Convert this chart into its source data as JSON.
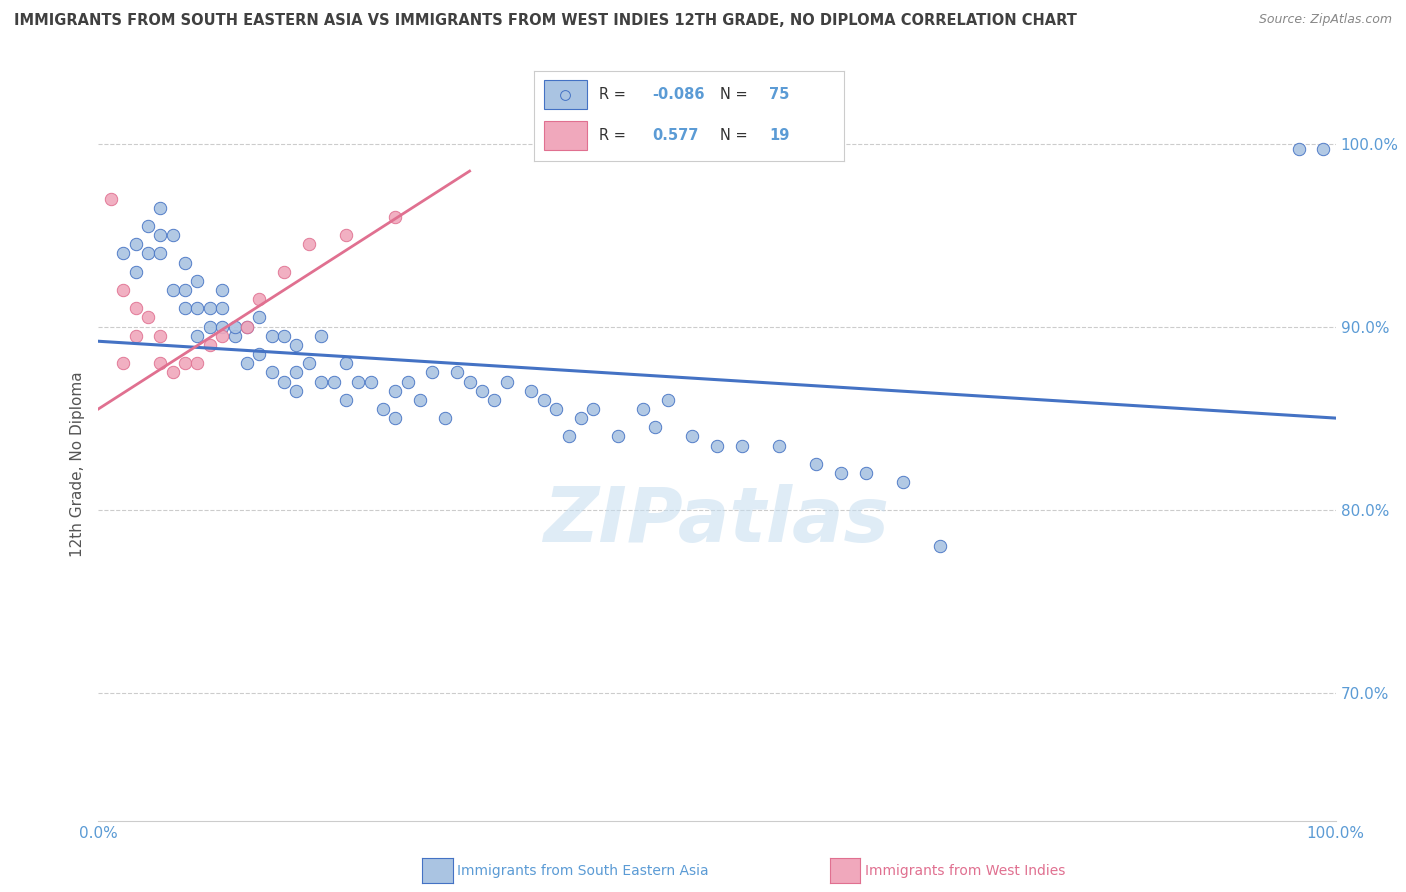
{
  "title": "IMMIGRANTS FROM SOUTH EASTERN ASIA VS IMMIGRANTS FROM WEST INDIES 12TH GRADE, NO DIPLOMA CORRELATION CHART",
  "source": "Source: ZipAtlas.com",
  "ylabel": "12th Grade, No Diploma",
  "watermark": "ZIPatlas",
  "blue_label": "Immigrants from South Eastern Asia",
  "pink_label": "Immigrants from West Indies",
  "blue_R": -0.086,
  "blue_N": 75,
  "pink_R": 0.577,
  "pink_N": 19,
  "xlim": [
    0.0,
    1.0
  ],
  "ylim": [
    0.63,
    1.02
  ],
  "yticks": [
    0.7,
    0.8,
    0.9,
    1.0
  ],
  "ytick_labels": [
    "70.0%",
    "80.0%",
    "90.0%",
    "100.0%"
  ],
  "xticks": [
    0.0,
    1.0
  ],
  "xtick_labels": [
    "0.0%",
    "100.0%"
  ],
  "blue_color": "#aac4e2",
  "pink_color": "#f0a8bc",
  "blue_edge_color": "#4472c4",
  "pink_edge_color": "#e07090",
  "blue_line_color": "#4472c4",
  "pink_line_color": "#e07090",
  "axis_color": "#5b9bd5",
  "title_color": "#404040",
  "background_color": "#ffffff",
  "blue_x": [
    0.02,
    0.03,
    0.03,
    0.04,
    0.04,
    0.05,
    0.05,
    0.05,
    0.06,
    0.06,
    0.07,
    0.07,
    0.07,
    0.08,
    0.08,
    0.08,
    0.09,
    0.09,
    0.1,
    0.1,
    0.1,
    0.11,
    0.11,
    0.12,
    0.12,
    0.13,
    0.13,
    0.14,
    0.14,
    0.15,
    0.15,
    0.16,
    0.16,
    0.16,
    0.17,
    0.18,
    0.18,
    0.19,
    0.2,
    0.2,
    0.21,
    0.22,
    0.23,
    0.24,
    0.24,
    0.25,
    0.26,
    0.27,
    0.28,
    0.29,
    0.3,
    0.31,
    0.32,
    0.33,
    0.35,
    0.36,
    0.37,
    0.38,
    0.39,
    0.4,
    0.42,
    0.44,
    0.45,
    0.46,
    0.48,
    0.5,
    0.52,
    0.55,
    0.58,
    0.6,
    0.62,
    0.65,
    0.68,
    0.97,
    0.99
  ],
  "blue_y": [
    0.94,
    0.945,
    0.93,
    0.94,
    0.955,
    0.94,
    0.95,
    0.965,
    0.95,
    0.92,
    0.92,
    0.91,
    0.935,
    0.925,
    0.91,
    0.895,
    0.91,
    0.9,
    0.9,
    0.91,
    0.92,
    0.895,
    0.9,
    0.9,
    0.88,
    0.885,
    0.905,
    0.875,
    0.895,
    0.895,
    0.87,
    0.89,
    0.875,
    0.865,
    0.88,
    0.87,
    0.895,
    0.87,
    0.86,
    0.88,
    0.87,
    0.87,
    0.855,
    0.85,
    0.865,
    0.87,
    0.86,
    0.875,
    0.85,
    0.875,
    0.87,
    0.865,
    0.86,
    0.87,
    0.865,
    0.86,
    0.855,
    0.84,
    0.85,
    0.855,
    0.84,
    0.855,
    0.845,
    0.86,
    0.84,
    0.835,
    0.835,
    0.835,
    0.825,
    0.82,
    0.82,
    0.815,
    0.78,
    0.997,
    0.997
  ],
  "pink_x": [
    0.01,
    0.02,
    0.02,
    0.03,
    0.03,
    0.04,
    0.05,
    0.05,
    0.06,
    0.07,
    0.08,
    0.09,
    0.1,
    0.12,
    0.13,
    0.15,
    0.17,
    0.2,
    0.24
  ],
  "pink_y": [
    0.97,
    0.92,
    0.88,
    0.895,
    0.91,
    0.905,
    0.895,
    0.88,
    0.875,
    0.88,
    0.88,
    0.89,
    0.895,
    0.9,
    0.915,
    0.93,
    0.945,
    0.95,
    0.96
  ],
  "blue_dot_size": 80,
  "pink_dot_size": 80,
  "blue_trend_x": [
    0.0,
    1.0
  ],
  "blue_trend_y": [
    0.892,
    0.85
  ],
  "pink_trend_x": [
    0.0,
    0.3
  ],
  "pink_trend_y": [
    0.855,
    0.985
  ]
}
